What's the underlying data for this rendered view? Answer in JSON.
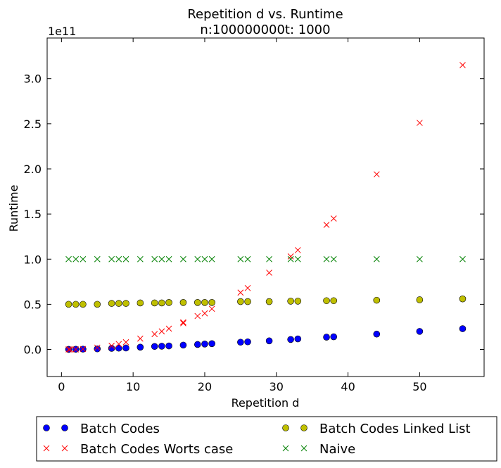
{
  "chart_data": {
    "type": "scatter",
    "title": "Repetition d vs. Runtime",
    "subtitle": "n:100000000t: 1000",
    "xlabel": "Repetition d",
    "ylabel": "Runtime",
    "y_offset_label": "1e11",
    "xlim": [
      -2,
      59
    ],
    "ylim": [
      -0.3,
      3.45
    ],
    "x_ticks": [
      0,
      10,
      20,
      30,
      40,
      50
    ],
    "x_tick_labels": [
      "0",
      "10",
      "20",
      "30",
      "40",
      "50"
    ],
    "y_ticks": [
      0,
      0.5,
      1.0,
      1.5,
      2.0,
      2.5,
      3.0
    ],
    "y_tick_labels": [
      "0.0",
      "0.5",
      "1.0",
      "1.5",
      "2.0",
      "2.5",
      "3.0"
    ],
    "grid": false,
    "legend_position": "bottom",
    "series": [
      {
        "name": "Batch Codes",
        "marker": "circle",
        "color": "#0000ff",
        "x": [
          1,
          2,
          3,
          5,
          7,
          8,
          9,
          11,
          13,
          14,
          15,
          17,
          19,
          20,
          21,
          25,
          26,
          29,
          32,
          33,
          37,
          38,
          44,
          50,
          56
        ],
        "y": [
          0.001,
          0.002,
          0.003,
          0.006,
          0.012,
          0.014,
          0.016,
          0.025,
          0.033,
          0.036,
          0.039,
          0.048,
          0.055,
          0.06,
          0.064,
          0.08,
          0.084,
          0.095,
          0.11,
          0.117,
          0.136,
          0.14,
          0.17,
          0.2,
          0.23
        ]
      },
      {
        "name": "Batch Codes Worts case",
        "marker": "x",
        "color": "#ff0000",
        "x": [
          1,
          1.2,
          2,
          3,
          5,
          7,
          8,
          9,
          11,
          13,
          14,
          15,
          17,
          17,
          19,
          20,
          21,
          25,
          26,
          29,
          32,
          33,
          37,
          38,
          44,
          50,
          56
        ],
        "y": [
          0.0,
          0.0,
          0.0,
          0.005,
          0.02,
          0.04,
          0.06,
          0.08,
          0.12,
          0.17,
          0.2,
          0.23,
          0.29,
          0.3,
          0.37,
          0.4,
          0.45,
          0.63,
          0.68,
          0.85,
          1.03,
          1.1,
          1.38,
          1.45,
          1.94,
          2.51,
          3.15
        ]
      },
      {
        "name": "Batch Codes Linked List",
        "marker": "circle",
        "color": "#bfbf00",
        "x": [
          1,
          2,
          3,
          5,
          7,
          8,
          9,
          11,
          13,
          14,
          15,
          17,
          19,
          20,
          21,
          25,
          26,
          29,
          32,
          33,
          37,
          38,
          44,
          50,
          56
        ],
        "y": [
          0.5,
          0.5,
          0.5,
          0.5,
          0.51,
          0.51,
          0.51,
          0.515,
          0.515,
          0.515,
          0.52,
          0.52,
          0.52,
          0.52,
          0.52,
          0.53,
          0.53,
          0.53,
          0.535,
          0.535,
          0.54,
          0.54,
          0.545,
          0.55,
          0.56
        ]
      },
      {
        "name": "Naive",
        "marker": "x",
        "color": "#008000",
        "x": [
          1,
          2,
          3,
          5,
          7,
          8,
          9,
          11,
          13,
          14,
          15,
          17,
          19,
          20,
          21,
          25,
          26,
          29,
          32,
          33,
          37,
          38,
          44,
          50,
          56
        ],
        "y": [
          1.0,
          1.0,
          1.0,
          1.0,
          1.0,
          1.0,
          1.0,
          1.0,
          1.0,
          1.0,
          1.0,
          1.0,
          1.0,
          1.0,
          1.0,
          1.0,
          1.0,
          1.0,
          1.0,
          1.0,
          1.0,
          1.0,
          1.0,
          1.0,
          1.0
        ]
      }
    ]
  }
}
